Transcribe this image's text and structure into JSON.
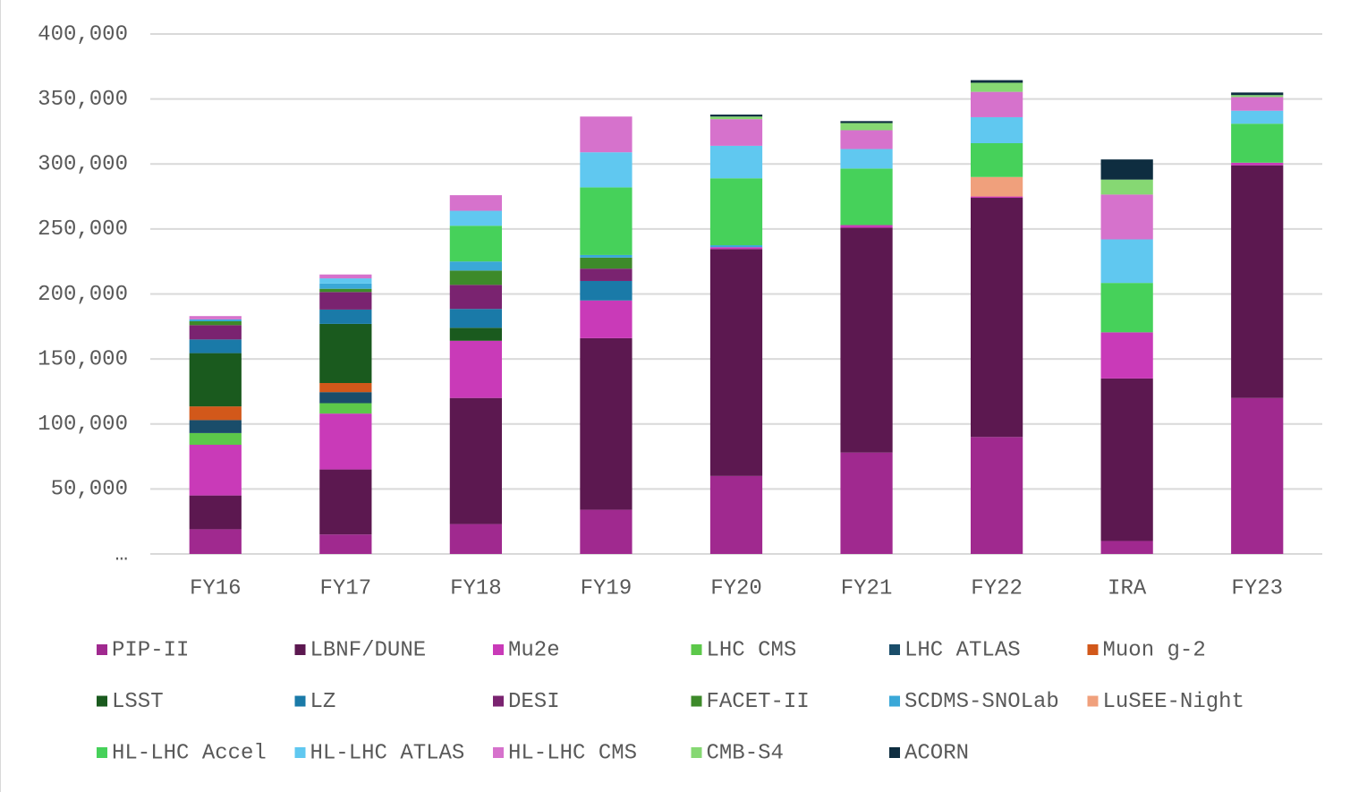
{
  "chart_data": {
    "type": "stacked_bar",
    "categories": [
      "FY16",
      "FY17",
      "FY18",
      "FY19",
      "FY20",
      "FY21",
      "FY22",
      "IRA",
      "FY23"
    ],
    "ylim": [
      0,
      400000
    ],
    "yticks": [
      {
        "value": 0,
        "label": "…"
      },
      {
        "value": 50000,
        "label": "50,000"
      },
      {
        "value": 100000,
        "label": "100,000"
      },
      {
        "value": 150000,
        "label": "150,000"
      },
      {
        "value": 200000,
        "label": "200,000"
      },
      {
        "value": 250000,
        "label": "250,000"
      },
      {
        "value": 300000,
        "label": "300,000"
      },
      {
        "value": 350000,
        "label": "350,000"
      },
      {
        "value": 400000,
        "label": "400,000"
      }
    ],
    "grid": true,
    "legend": "bottom",
    "series": [
      {
        "name": "PIP-II",
        "color": "#a0298f",
        "values": [
          19000,
          15000,
          23000,
          34000,
          60000,
          78000,
          90000,
          10000,
          120000
        ]
      },
      {
        "name": "LBNF/DUNE",
        "color": "#5c1850",
        "values": [
          26000,
          50000,
          97000,
          132000,
          174500,
          173000,
          184000,
          125000,
          179000
        ]
      },
      {
        "name": "Mu2e",
        "color": "#c93ab8",
        "values": [
          39000,
          43000,
          44000,
          29000,
          1500,
          2000,
          1000,
          35500,
          2000
        ]
      },
      {
        "name": "LHC CMS",
        "color": "#5cc84a",
        "values": [
          9000,
          8000,
          0,
          0,
          0,
          0,
          0,
          0,
          0
        ]
      },
      {
        "name": "LHC ATLAS",
        "color": "#1a4d6a",
        "values": [
          10000,
          8500,
          0,
          0,
          0,
          0,
          0,
          0,
          0
        ]
      },
      {
        "name": "Muon g-2",
        "color": "#d2581a",
        "values": [
          10500,
          7000,
          0,
          0,
          0,
          0,
          0,
          0,
          0
        ]
      },
      {
        "name": "LSST",
        "color": "#1a5a1e",
        "values": [
          41000,
          45500,
          10000,
          0,
          0,
          0,
          0,
          0,
          0
        ]
      },
      {
        "name": "LZ",
        "color": "#1a7aa8",
        "values": [
          10500,
          11000,
          14500,
          15000,
          0,
          0,
          0,
          0,
          0
        ]
      },
      {
        "name": "DESI",
        "color": "#7a2370",
        "values": [
          11000,
          13500,
          18500,
          9500,
          0,
          0,
          0,
          0,
          0
        ]
      },
      {
        "name": "FACET-II",
        "color": "#3d8a2a",
        "values": [
          3000,
          2500,
          11000,
          8500,
          0,
          0,
          0,
          0,
          0
        ]
      },
      {
        "name": "SCDMS-SNOLab",
        "color": "#3aa8d8",
        "values": [
          1500,
          4000,
          7000,
          2000,
          1500,
          0,
          0,
          0,
          0
        ]
      },
      {
        "name": "LuSEE-Night",
        "color": "#f0a07c",
        "values": [
          0,
          0,
          0,
          0,
          0,
          0,
          15000,
          0,
          0
        ]
      },
      {
        "name": "HL-LHC Accel",
        "color": "#46d15a",
        "values": [
          0,
          0,
          27500,
          52000,
          51500,
          43500,
          26000,
          38000,
          30000
        ]
      },
      {
        "name": "HL-LHC ATLAS",
        "color": "#60c8f0",
        "values": [
          0,
          4000,
          11500,
          27000,
          25000,
          15000,
          20000,
          33500,
          10000
        ]
      },
      {
        "name": "HL-LHC CMS",
        "color": "#d672cc",
        "values": [
          2500,
          3000,
          12000,
          27500,
          20500,
          14500,
          19500,
          34500,
          10500
        ]
      },
      {
        "name": "CMB-S4",
        "color": "#86d873",
        "values": [
          0,
          0,
          0,
          0,
          2000,
          5500,
          7000,
          11500,
          1500
        ]
      },
      {
        "name": "ACORN",
        "color": "#0e2d40",
        "values": [
          0,
          0,
          0,
          0,
          1500,
          1500,
          2000,
          15500,
          2000
        ]
      }
    ]
  }
}
